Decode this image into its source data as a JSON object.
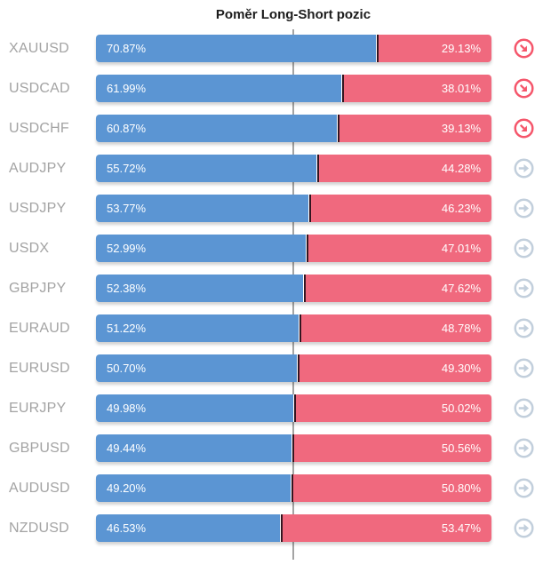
{
  "title": "Poměr Long-Short pozic",
  "colors": {
    "long_bar": "#5b95d3",
    "short_bar": "#f0697e",
    "divider_dark": "#331520",
    "center_line": "#a4a4a4",
    "label_gray": "#a3a3a3",
    "trend_down_icon": "#f5566b",
    "trend_neutral_icon": "#c2cfdc",
    "bar_text": "#ffffff",
    "title_text": "#1c1c1c"
  },
  "rows": [
    {
      "pair": "XAUUSD",
      "long": 70.87,
      "short": 29.13,
      "long_label": "70.87%",
      "short_label": "29.13%",
      "trend": "down"
    },
    {
      "pair": "USDCAD",
      "long": 61.99,
      "short": 38.01,
      "long_label": "61.99%",
      "short_label": "38.01%",
      "trend": "down"
    },
    {
      "pair": "USDCHF",
      "long": 60.87,
      "short": 39.13,
      "long_label": "60.87%",
      "short_label": "39.13%",
      "trend": "down"
    },
    {
      "pair": "AUDJPY",
      "long": 55.72,
      "short": 44.28,
      "long_label": "55.72%",
      "short_label": "44.28%",
      "trend": "neutral"
    },
    {
      "pair": "USDJPY",
      "long": 53.77,
      "short": 46.23,
      "long_label": "53.77%",
      "short_label": "46.23%",
      "trend": "neutral"
    },
    {
      "pair": "USDX",
      "long": 52.99,
      "short": 47.01,
      "long_label": "52.99%",
      "short_label": "47.01%",
      "trend": "neutral"
    },
    {
      "pair": "GBPJPY",
      "long": 52.38,
      "short": 47.62,
      "long_label": "52.38%",
      "short_label": "47.62%",
      "trend": "neutral"
    },
    {
      "pair": "EURAUD",
      "long": 51.22,
      "short": 48.78,
      "long_label": "51.22%",
      "short_label": "48.78%",
      "trend": "neutral"
    },
    {
      "pair": "EURUSD",
      "long": 50.7,
      "short": 49.3,
      "long_label": "50.70%",
      "short_label": "49.30%",
      "trend": "neutral"
    },
    {
      "pair": "EURJPY",
      "long": 49.98,
      "short": 50.02,
      "long_label": "49.98%",
      "short_label": "50.02%",
      "trend": "neutral"
    },
    {
      "pair": "GBPUSD",
      "long": 49.44,
      "short": 50.56,
      "long_label": "49.44%",
      "short_label": "50.56%",
      "trend": "neutral"
    },
    {
      "pair": "AUDUSD",
      "long": 49.2,
      "short": 50.8,
      "long_label": "49.20%",
      "short_label": "50.80%",
      "trend": "neutral"
    },
    {
      "pair": "NZDUSD",
      "long": 46.53,
      "short": 53.47,
      "long_label": "46.53%",
      "short_label": "53.47%",
      "trend": "neutral"
    }
  ],
  "chart_data": {
    "type": "bar",
    "subtype": "horizontal-stacked-100pct",
    "title": "Poměr Long-Short pozic",
    "xlabel": "",
    "ylabel": "",
    "xlim": [
      0,
      100
    ],
    "grid": false,
    "legend_position": "none",
    "midline_at": 50,
    "categories": [
      "XAUUSD",
      "USDCAD",
      "USDCHF",
      "AUDJPY",
      "USDJPY",
      "USDX",
      "GBPJPY",
      "EURAUD",
      "EURUSD",
      "EURJPY",
      "GBPUSD",
      "AUDUSD",
      "NZDUSD"
    ],
    "series": [
      {
        "name": "Long",
        "color": "#5b95d3",
        "values": [
          70.87,
          61.99,
          60.87,
          55.72,
          53.77,
          52.99,
          52.38,
          51.22,
          50.7,
          49.98,
          49.44,
          49.2,
          46.53
        ]
      },
      {
        "name": "Short",
        "color": "#f0697e",
        "values": [
          29.13,
          38.01,
          39.13,
          44.28,
          46.23,
          47.01,
          47.62,
          48.78,
          49.3,
          50.02,
          50.56,
          50.8,
          53.47
        ]
      }
    ],
    "row_trend_icons": [
      "down",
      "down",
      "down",
      "neutral",
      "neutral",
      "neutral",
      "neutral",
      "neutral",
      "neutral",
      "neutral",
      "neutral",
      "neutral",
      "neutral"
    ]
  }
}
